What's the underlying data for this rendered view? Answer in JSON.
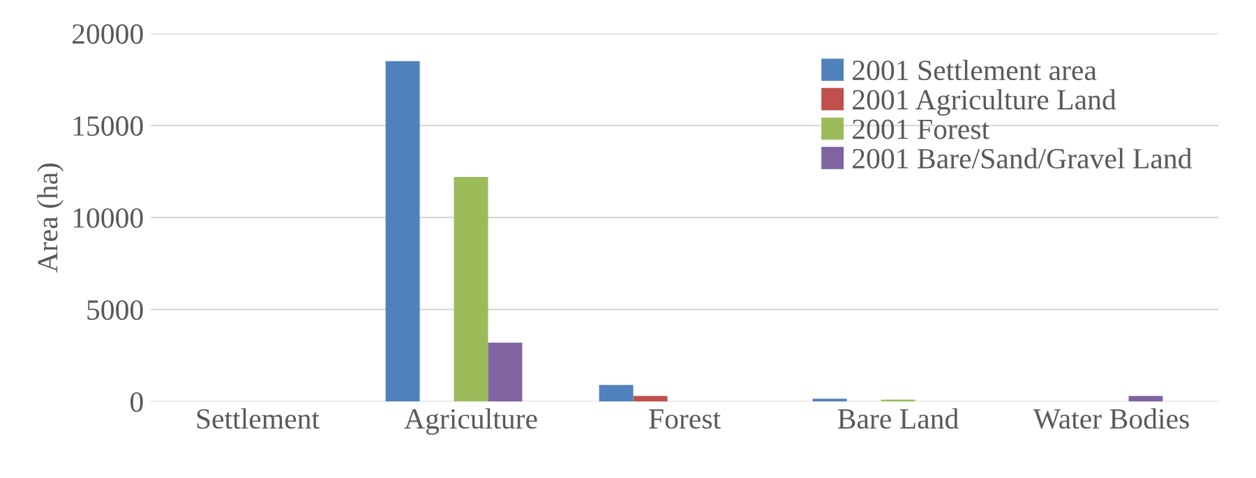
{
  "chart_data": {
    "type": "bar",
    "ylabel": "Area (ha)",
    "categories": [
      "Settlement",
      "Agriculture",
      "Forest",
      "Bare Land",
      "Water Bodies"
    ],
    "series": [
      {
        "name": "2001 Settlement area",
        "color": "#4f81bd",
        "values": [
          null,
          18500,
          900,
          150,
          0
        ]
      },
      {
        "name": "2001 Agriculture Land",
        "color": "#c0504d",
        "values": [
          0,
          null,
          300,
          0,
          0
        ]
      },
      {
        "name": "2001 Forest",
        "color": "#9bbb59",
        "values": [
          0,
          12200,
          null,
          100,
          0
        ]
      },
      {
        "name": "2001 Bare/Sand/Gravel Land",
        "color": "#8064a2",
        "values": [
          0,
          3200,
          0,
          null,
          300
        ]
      },
      {
        "color": "#4bacc6",
        "values": [
          0,
          0,
          0,
          0,
          null
        ]
      }
    ],
    "ylim": [
      0,
      20000
    ],
    "yticks": [
      0,
      5000,
      10000,
      15000,
      20000
    ],
    "grid": "y",
    "legend": "top right"
  }
}
